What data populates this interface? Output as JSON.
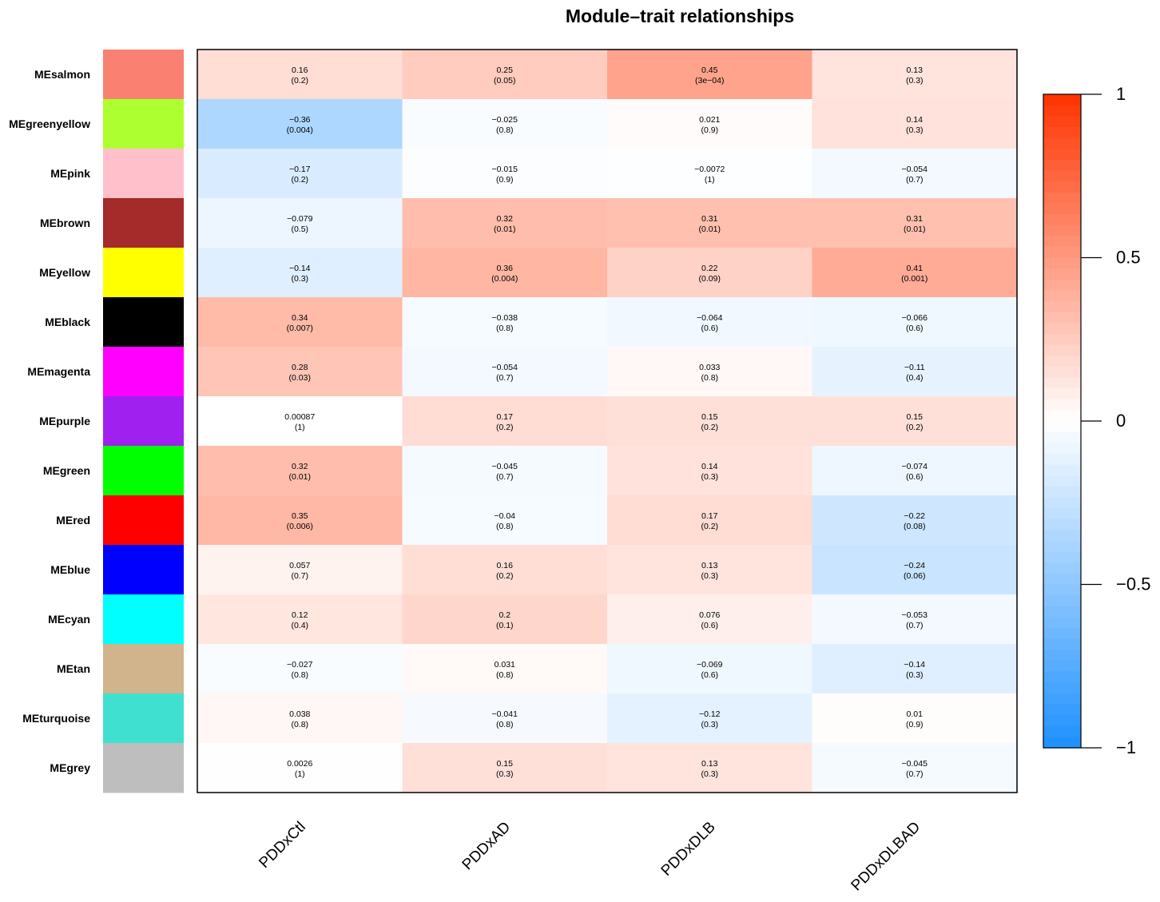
{
  "chart_data": {
    "type": "heatmap",
    "title": "Module–trait relationships",
    "rows": [
      {
        "label": "MEsalmon",
        "color": "#fa8072"
      },
      {
        "label": "MEgreenyellow",
        "color": "#adff2f"
      },
      {
        "label": "MEpink",
        "color": "#ffc0cb"
      },
      {
        "label": "MEbrown",
        "color": "#a52a2a"
      },
      {
        "label": "MEyellow",
        "color": "#ffff00"
      },
      {
        "label": "MEblack",
        "color": "#000000"
      },
      {
        "label": "MEmagenta",
        "color": "#ff00ff"
      },
      {
        "label": "MEpurple",
        "color": "#a020f0"
      },
      {
        "label": "MEgreen",
        "color": "#00ff00"
      },
      {
        "label": "MEred",
        "color": "#ff0000"
      },
      {
        "label": "MEblue",
        "color": "#0000ff"
      },
      {
        "label": "MEcyan",
        "color": "#00ffff"
      },
      {
        "label": "MEtan",
        "color": "#d2b48c"
      },
      {
        "label": "MEturquoise",
        "color": "#40e0d0"
      },
      {
        "label": "MEgrey",
        "color": "#bebebe"
      }
    ],
    "columns": [
      "PDDxCtl",
      "PDDxAD",
      "PDDxDLB",
      "PDDxDLBAD"
    ],
    "values": [
      [
        0.16,
        0.25,
        0.45,
        0.13
      ],
      [
        -0.36,
        -0.025,
        0.021,
        0.14
      ],
      [
        -0.17,
        -0.015,
        -0.0072,
        -0.054
      ],
      [
        -0.079,
        0.32,
        0.31,
        0.31
      ],
      [
        -0.14,
        0.36,
        0.22,
        0.41
      ],
      [
        0.34,
        -0.038,
        -0.064,
        -0.066
      ],
      [
        0.28,
        -0.054,
        0.033,
        -0.11
      ],
      [
        0.00087,
        0.17,
        0.15,
        0.15
      ],
      [
        0.32,
        -0.045,
        0.14,
        -0.074
      ],
      [
        0.35,
        -0.04,
        0.17,
        -0.22
      ],
      [
        0.057,
        0.16,
        0.13,
        -0.24
      ],
      [
        0.12,
        0.2,
        0.076,
        -0.053
      ],
      [
        -0.027,
        0.031,
        -0.069,
        -0.14
      ],
      [
        0.038,
        -0.041,
        -0.12,
        0.01
      ],
      [
        0.0026,
        0.15,
        0.13,
        -0.045
      ]
    ],
    "value_labels": [
      [
        "0.16",
        "0.25",
        "0.45",
        "0.13"
      ],
      [
        "−0.36",
        "−0.025",
        "0.021",
        "0.14"
      ],
      [
        "−0.17",
        "−0.015",
        "−0.0072",
        "−0.054"
      ],
      [
        "−0.079",
        "0.32",
        "0.31",
        "0.31"
      ],
      [
        "−0.14",
        "0.36",
        "0.22",
        "0.41"
      ],
      [
        "0.34",
        "−0.038",
        "−0.064",
        "−0.066"
      ],
      [
        "0.28",
        "−0.054",
        "0.033",
        "−0.11"
      ],
      [
        "0.00087",
        "0.17",
        "0.15",
        "0.15"
      ],
      [
        "0.32",
        "−0.045",
        "0.14",
        "−0.074"
      ],
      [
        "0.35",
        "−0.04",
        "0.17",
        "−0.22"
      ],
      [
        "0.057",
        "0.16",
        "0.13",
        "−0.24"
      ],
      [
        "0.12",
        "0.2",
        "0.076",
        "−0.053"
      ],
      [
        "−0.027",
        "0.031",
        "−0.069",
        "−0.14"
      ],
      [
        "0.038",
        "−0.041",
        "−0.12",
        "0.01"
      ],
      [
        "0.0026",
        "0.15",
        "0.13",
        "−0.045"
      ]
    ],
    "pvalues": [
      [
        "(0.2)",
        "(0.05)",
        "(3e−04)",
        "(0.3)"
      ],
      [
        "(0.004)",
        "(0.8)",
        "(0.9)",
        "(0.3)"
      ],
      [
        "(0.2)",
        "(0.9)",
        "(1)",
        "(0.7)"
      ],
      [
        "(0.5)",
        "(0.01)",
        "(0.01)",
        "(0.01)"
      ],
      [
        "(0.3)",
        "(0.004)",
        "(0.09)",
        "(0.001)"
      ],
      [
        "(0.007)",
        "(0.8)",
        "(0.6)",
        "(0.6)"
      ],
      [
        "(0.03)",
        "(0.7)",
        "(0.8)",
        "(0.4)"
      ],
      [
        "(1)",
        "(0.2)",
        "(0.2)",
        "(0.2)"
      ],
      [
        "(0.01)",
        "(0.7)",
        "(0.3)",
        "(0.6)"
      ],
      [
        "(0.006)",
        "(0.8)",
        "(0.2)",
        "(0.08)"
      ],
      [
        "(0.7)",
        "(0.2)",
        "(0.3)",
        "(0.06)"
      ],
      [
        "(0.4)",
        "(0.1)",
        "(0.6)",
        "(0.7)"
      ],
      [
        "(0.8)",
        "(0.8)",
        "(0.6)",
        "(0.3)"
      ],
      [
        "(0.8)",
        "(0.8)",
        "(0.3)",
        "(0.9)"
      ],
      [
        "(1)",
        "(0.3)",
        "(0.3)",
        "(0.7)"
      ]
    ],
    "color_scale": {
      "range": [
        -1,
        1
      ],
      "negative_color": "#1e90ff",
      "mid_color": "#ffffff",
      "positive_color": "#ff3300",
      "ticks": [
        1,
        0.5,
        0,
        -0.5,
        -1
      ],
      "tick_labels": [
        "1",
        "0.5",
        "0",
        "−0.5",
        "−1"
      ]
    }
  }
}
